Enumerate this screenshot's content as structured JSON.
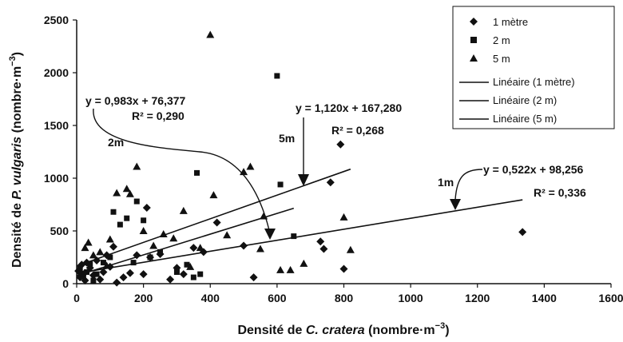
{
  "chart_data": {
    "type": "scatter",
    "xlabel": {
      "pre": "Densité de ",
      "ital": "C. cratera",
      "post": " (nombre·m",
      "sup": "−3",
      "end": ")"
    },
    "ylabel": {
      "pre": "Densité de ",
      "ital": "P. vulgaris",
      "post": " (nombre·m",
      "sup": "−3",
      "end": ")"
    },
    "xlim": [
      0,
      1600
    ],
    "ylim": [
      0,
      2500
    ],
    "xticks": [
      "0",
      "200",
      "400",
      "600",
      "800",
      "1000",
      "1200",
      "1400",
      "1600"
    ],
    "yticks": [
      "0",
      "500",
      "1000",
      "1500",
      "2000",
      "2500"
    ],
    "grid": false,
    "legend_position": "top-right",
    "legend": [
      "1 mètre",
      "2 m",
      "5 m",
      "Linéaire (1 mètre)",
      "Linéaire (2 m)",
      "Linéaire (5 m)"
    ],
    "series": [
      {
        "name": "1 mètre",
        "marker": "diamond",
        "x": [
          5,
          10,
          15,
          20,
          25,
          30,
          40,
          50,
          60,
          70,
          80,
          90,
          100,
          110,
          120,
          140,
          160,
          180,
          200,
          210,
          220,
          250,
          280,
          300,
          320,
          350,
          380,
          420,
          500,
          530,
          730,
          740,
          760,
          790,
          800,
          1335
        ],
        "y": [
          120,
          60,
          180,
          90,
          30,
          200,
          150,
          80,
          220,
          40,
          110,
          270,
          160,
          350,
          10,
          60,
          100,
          270,
          90,
          720,
          250,
          280,
          40,
          150,
          90,
          340,
          300,
          580,
          360,
          60,
          400,
          330,
          960,
          1320,
          140,
          490
        ]
      },
      {
        "name": "2 m",
        "marker": "square",
        "x": [
          10,
          20,
          30,
          40,
          50,
          60,
          80,
          100,
          110,
          130,
          150,
          170,
          180,
          200,
          220,
          250,
          300,
          330,
          350,
          360,
          370,
          600,
          610,
          650
        ],
        "y": [
          150,
          70,
          110,
          190,
          30,
          90,
          200,
          250,
          680,
          560,
          620,
          200,
          780,
          600,
          250,
          300,
          110,
          180,
          60,
          1050,
          90,
          1970,
          940,
          450
        ]
      },
      {
        "name": "5 m",
        "marker": "triangle",
        "x": [
          15,
          25,
          35,
          50,
          70,
          90,
          100,
          120,
          150,
          160,
          180,
          200,
          230,
          260,
          290,
          320,
          340,
          370,
          400,
          410,
          450,
          500,
          520,
          550,
          560,
          610,
          640,
          680,
          800,
          820
        ],
        "y": [
          100,
          340,
          390,
          270,
          300,
          170,
          420,
          860,
          900,
          850,
          1110,
          500,
          360,
          470,
          430,
          690,
          160,
          340,
          2360,
          840,
          460,
          1060,
          1110,
          330,
          640,
          130,
          130,
          190,
          630,
          320
        ]
      }
    ],
    "trendlines": [
      {
        "name": "Linéaire (1 mètre)",
        "slope": 0.522,
        "intercept": 98.256,
        "x_range": [
          0,
          1335
        ]
      },
      {
        "name": "Linéaire (2 m)",
        "slope": 0.983,
        "intercept": 76.377,
        "x_range": [
          0,
          650
        ]
      },
      {
        "name": "Linéaire (5 m)",
        "slope": 1.12,
        "intercept": 167.28,
        "x_range": [
          0,
          820
        ]
      }
    ],
    "annotations": [
      {
        "eq": "y = 0,983x + 76,377",
        "r2": "R² = 0,290",
        "tag": "2m"
      },
      {
        "eq": "y = 1,120x + 167,280",
        "r2": "R² = 0,268",
        "tag": "5m"
      },
      {
        "eq": "y = 0,522x + 98,256",
        "r2": "R² = 0,336",
        "tag": "1m"
      }
    ]
  }
}
